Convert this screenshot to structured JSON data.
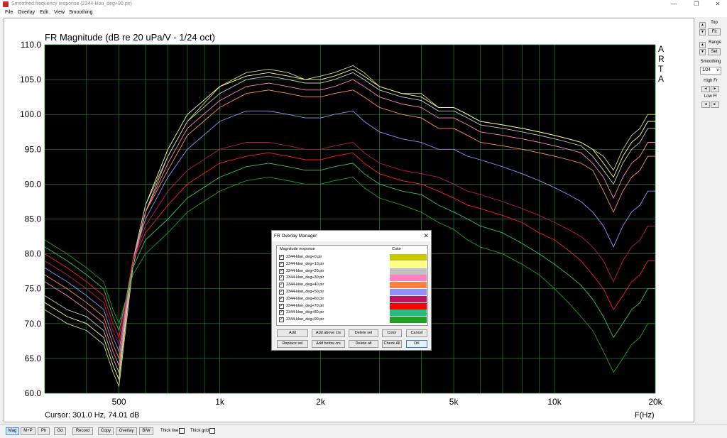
{
  "window": {
    "title": "Smoothed frequency response (2344-klon_deg+90.pir)",
    "minimize": "—",
    "restore": "❐",
    "close": "✕"
  },
  "menu": [
    "File",
    "Overlay",
    "Edit",
    "View",
    "Smoothing"
  ],
  "chart_data": {
    "type": "line",
    "title": "FR Magnitude (dB re 20 uPa/V - 1/24 oct)",
    "xlabel": "F(Hz)",
    "ylabel": "",
    "xscale": "log",
    "xlim": [
      300,
      20000
    ],
    "ylim": [
      60,
      110
    ],
    "ytick_labels": [
      "110.0",
      "105.0",
      "100.0",
      "95.0",
      "90.0",
      "85.0",
      "80.0",
      "75.0",
      "70.0",
      "65.0",
      "60.0"
    ],
    "yticks": [
      110,
      105,
      100,
      95,
      90,
      85,
      80,
      75,
      70,
      65,
      60
    ],
    "xtick_labels": [
      "500",
      "1k",
      "2k",
      "5k",
      "10k",
      "20k"
    ],
    "xticks": [
      500,
      1000,
      2000,
      5000,
      10000,
      20000
    ],
    "grid": true,
    "background": "#000000",
    "grid_color": "#2e7d32",
    "watermark": [
      "A",
      "R",
      "T",
      "A"
    ],
    "x": [
      300,
      350,
      400,
      450,
      480,
      500,
      550,
      600,
      700,
      800,
      1000,
      1200,
      1400,
      1600,
      1800,
      2000,
      2200,
      2500,
      2700,
      3000,
      3500,
      4000,
      4500,
      5000,
      5500,
      6000,
      7000,
      8000,
      9000,
      10000,
      11000,
      12000,
      13000,
      14000,
      15000,
      16000,
      17000,
      18000,
      19000,
      20000
    ],
    "series": [
      {
        "color": "#d4d48a",
        "values": [
          72,
          70,
          69,
          67,
          63,
          61,
          78,
          86,
          94,
          99,
          104,
          106,
          106.5,
          106,
          105,
          105.5,
          106,
          107,
          106,
          104,
          103,
          103,
          101,
          101,
          100,
          99,
          98.5,
          98,
          97.5,
          97,
          96.5,
          96,
          95,
          94,
          92,
          95,
          97,
          98,
          100,
          100
        ]
      },
      {
        "color": "#ffff80",
        "values": [
          73,
          71,
          70,
          68,
          64,
          62,
          79,
          87,
          95,
          100,
          104,
          105.5,
          106,
          105.5,
          105,
          105,
          105.5,
          106.5,
          105.5,
          104,
          103,
          102.5,
          101,
          101,
          100,
          99,
          98.5,
          98,
          97.5,
          97,
          96.5,
          96,
          95,
          93,
          91,
          94,
          96,
          97,
          99,
          99
        ]
      },
      {
        "color": "#c8c8c8",
        "values": [
          74,
          72,
          71,
          69,
          65,
          63,
          79,
          87,
          94,
          99,
          103,
          105,
          105.5,
          105,
          104.5,
          104.5,
          105,
          106,
          105,
          103.5,
          102.5,
          102,
          100.5,
          100.5,
          99.5,
          98.5,
          98,
          97.5,
          97,
          96.5,
          96,
          95.5,
          94,
          92,
          90,
          93,
          95,
          96,
          98,
          98
        ]
      },
      {
        "color": "#ff80c0",
        "values": [
          76,
          74,
          72,
          70,
          66,
          64,
          79,
          86,
          93,
          98,
          102,
          104,
          104.5,
          104,
          103.5,
          103.5,
          104,
          105,
          104,
          102.5,
          101.5,
          101,
          99.5,
          99.5,
          98.5,
          97.5,
          97,
          96.5,
          96,
          95.5,
          95,
          94.5,
          93,
          91,
          88,
          91,
          93,
          94,
          96,
          96
        ]
      },
      {
        "color": "#ff9050",
        "values": [
          77,
          75,
          73,
          71,
          67,
          65,
          79,
          86,
          92,
          97,
          101,
          103,
          103.5,
          103,
          102.5,
          102.5,
          103,
          103.5,
          102.5,
          101,
          100,
          99.5,
          98,
          98,
          97,
          96,
          95.5,
          95,
          94.5,
          94,
          93.5,
          93,
          92,
          89,
          86,
          89,
          91,
          92,
          94,
          94
        ]
      },
      {
        "color": "#9090ff",
        "values": [
          78,
          76,
          74,
          72,
          68,
          66,
          79,
          85,
          91,
          95,
          99,
          100.5,
          100.5,
          100,
          99.5,
          99.5,
          100,
          100.5,
          99,
          97.5,
          96.5,
          96,
          95,
          95,
          94,
          93.5,
          92.5,
          91.5,
          90.5,
          89.5,
          88.5,
          87.5,
          86,
          84,
          81,
          84,
          86,
          87,
          89,
          89
        ]
      },
      {
        "color": "#c01860",
        "values": [
          79,
          77,
          75,
          73,
          69,
          67,
          79,
          84,
          89,
          92,
          95,
          96,
          96,
          95.5,
          95,
          95,
          95.5,
          96,
          94.5,
          93,
          92,
          91.5,
          91,
          90,
          89,
          88.5,
          87.5,
          86.5,
          85.5,
          84.5,
          83.5,
          82.5,
          81,
          79,
          76,
          79,
          81,
          82,
          84,
          84
        ]
      },
      {
        "color": "#ff2020",
        "values": [
          80,
          78,
          76,
          74,
          70,
          68,
          79,
          83,
          87,
          90,
          93,
          94,
          94.5,
          94,
          93.5,
          93.5,
          94,
          94.5,
          93,
          91.5,
          90.5,
          90,
          89,
          88,
          87,
          86.5,
          85.5,
          84.5,
          83,
          82,
          80.5,
          79,
          77,
          75,
          72,
          74,
          76,
          77,
          79,
          79
        ]
      },
      {
        "color": "#30c070",
        "values": [
          81,
          79,
          77,
          75,
          71,
          69,
          78,
          82,
          85,
          88,
          91,
          92.5,
          93,
          92.5,
          92,
          92,
          92.5,
          93,
          91.5,
          90,
          89,
          88.5,
          87,
          86,
          85,
          84,
          83,
          81.5,
          80,
          78.5,
          77,
          75.5,
          73.5,
          71,
          68,
          70,
          72,
          73,
          75,
          75
        ]
      },
      {
        "color": "#20a020",
        "values": [
          82,
          80,
          78,
          76,
          72,
          70,
          77,
          80,
          83,
          86,
          89,
          90.5,
          91,
          90.5,
          90,
          90,
          90.5,
          91,
          89.5,
          88,
          87,
          86,
          84.5,
          83.5,
          82,
          81,
          80,
          78.5,
          77,
          75,
          73,
          71,
          69,
          66,
          63,
          65,
          67,
          68,
          70,
          70
        ]
      }
    ]
  },
  "cursor": "Cursor: 301.0 Hz, 74.01 dB",
  "right_panel": {
    "top_label": "Top",
    "fit_label": "Fit",
    "range_label": "Range",
    "set_label": "Set",
    "smoothing_label": "Smoothing",
    "smoothing_value": "1/24",
    "high_fr_label": "High Fr",
    "low_fr_label": "Low Fr",
    "up": "▲",
    "down": "▼",
    "left": "◄",
    "right": "►",
    "dropdown": "∨"
  },
  "bottom": {
    "buttons": [
      "Mag",
      "M+P",
      "Ph",
      "Gd",
      "Record",
      "Copy",
      "Overlay",
      "B/W"
    ],
    "thick_line": "Thick line",
    "thick_grid": "Thick grid"
  },
  "dialog": {
    "title": "FR Overlay Manager",
    "close": "✕",
    "col_response": "Magnitude response",
    "col_color": "Color",
    "check": "✓",
    "rows": [
      {
        "name": "2344-klon_deg+0.pir",
        "color": "#c8c800"
      },
      {
        "name": "2344-klon_deg+10.pir",
        "color": "#ffff80"
      },
      {
        "name": "2344-klon_deg+20.pir",
        "color": "#c0c0c0"
      },
      {
        "name": "2344-klon_deg+30.pir",
        "color": "#ff80c0"
      },
      {
        "name": "2344-klon_deg+40.pir",
        "color": "#ff8040"
      },
      {
        "name": "2344-klon_deg+50.pir",
        "color": "#9090ff"
      },
      {
        "name": "2344-klon_deg+60.pir",
        "color": "#c01060"
      },
      {
        "name": "2344-klon_deg+70.pir",
        "color": "#ff0000"
      },
      {
        "name": "2344-klon_deg+80.pir",
        "color": "#20c080"
      },
      {
        "name": "2344-klon_deg+90.pir",
        "color": "#20a020"
      }
    ],
    "buttons_row1": [
      "Add",
      "Add above crs",
      "Delete sel",
      "Color",
      "Cancel"
    ],
    "buttons_row2": [
      "Replace sel",
      "Add below crs",
      "Delete all",
      "Check All",
      "OK"
    ]
  }
}
